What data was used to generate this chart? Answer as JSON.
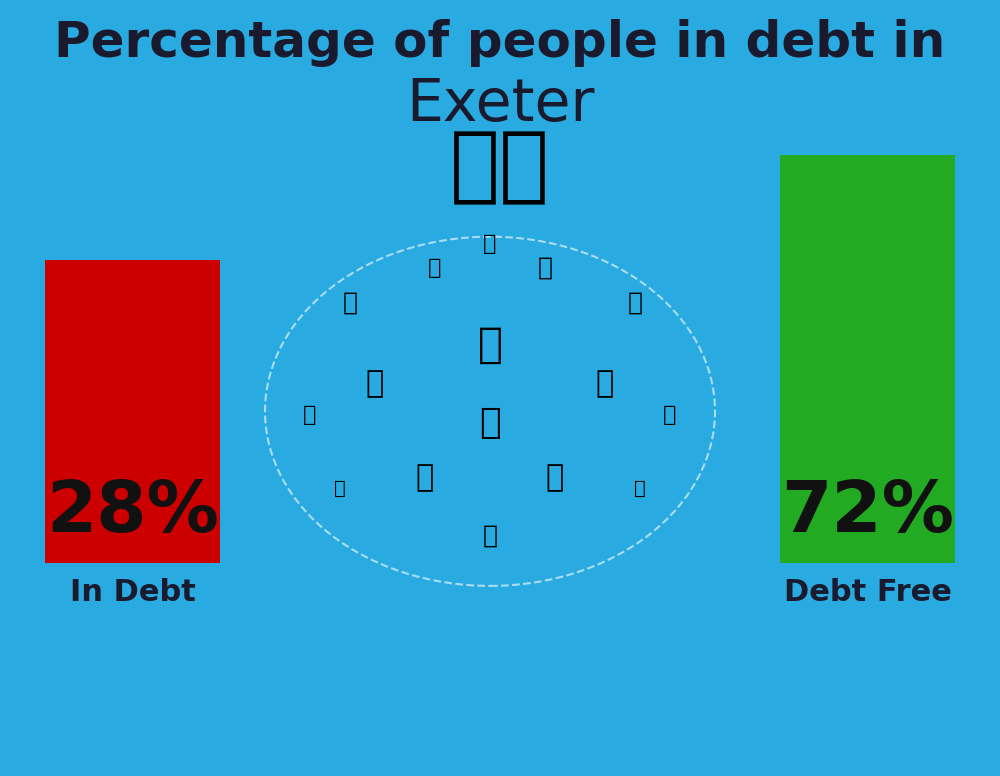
{
  "title_line1": "Percentage of people in debt in",
  "title_line2": "Exeter",
  "background_color": "#29ABE2",
  "bar_in_debt_value": 28,
  "bar_debt_free_value": 72,
  "bar_in_debt_label": "In Debt",
  "bar_debt_free_label": "Debt Free",
  "bar_in_debt_pct": "28%",
  "bar_debt_free_pct": "72%",
  "bar_in_debt_color": "#CC0000",
  "bar_debt_free_color": "#22AA22",
  "title_color": "#1a1a2e",
  "label_color": "#1a1a2e",
  "pct_color": "#111111",
  "title_fontsize": 36,
  "subtitle_fontsize": 42,
  "label_fontsize": 22,
  "pct_fontsize": 52,
  "flag_fontsize": 60
}
